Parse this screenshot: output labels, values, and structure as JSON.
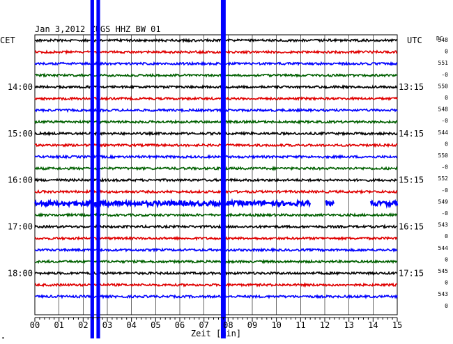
{
  "title": "Jan 3,2012  ZUGS HHZ BW 01",
  "left_zone": "CET",
  "right_zone": "UTC",
  "dc_header": "DC",
  "corner_mark": "∙",
  "colors": {
    "background": "#ffffff",
    "grid": "#000000",
    "trace_cycle": [
      "#000000",
      "#e00000",
      "#0000ff",
      "#006000"
    ]
  },
  "chart_data": {
    "type": "line",
    "title": "Jan 3,2012  ZUGS HHZ BW 01",
    "xlabel": "Zeit [min]",
    "xlim": [
      0,
      15
    ],
    "x_ticks": [
      "00",
      "01",
      "02",
      "03",
      "04",
      "05",
      "06",
      "07",
      "08",
      "09",
      "10",
      "11",
      "12",
      "13",
      "14",
      "15"
    ],
    "x_minor_step": 0.2,
    "grid": true,
    "row_count": 23,
    "left_time_labels": [
      {
        "row": 4,
        "text": "14:00"
      },
      {
        "row": 8,
        "text": "15:00"
      },
      {
        "row": 12,
        "text": "16:00"
      },
      {
        "row": 16,
        "text": "17:00"
      },
      {
        "row": 20,
        "text": "18:00"
      }
    ],
    "right_time_labels": [
      {
        "row": 4,
        "text": "13:15"
      },
      {
        "row": 8,
        "text": "14:15"
      },
      {
        "row": 12,
        "text": "15:15"
      },
      {
        "row": 16,
        "text": "16:15"
      },
      {
        "row": 20,
        "text": "17:15"
      }
    ],
    "dc_values": [
      "548",
      "0",
      "551",
      "-0",
      "550",
      "0",
      "548",
      "-0",
      "544",
      "0",
      "550",
      "-0",
      "552",
      "-0",
      "549",
      "-0",
      "543",
      "0",
      "544",
      "0",
      "545",
      "0",
      "543",
      "0"
    ],
    "events": [
      {
        "x": 2.3,
        "width": 0.15
      },
      {
        "x": 2.55,
        "width": 0.15
      },
      {
        "x": 7.7,
        "width": 0.2
      }
    ],
    "gaps": [
      {
        "row": 14,
        "from": 11.4,
        "to": 12.0
      },
      {
        "row": 14,
        "from": 12.4,
        "to": 13.9
      }
    ]
  }
}
